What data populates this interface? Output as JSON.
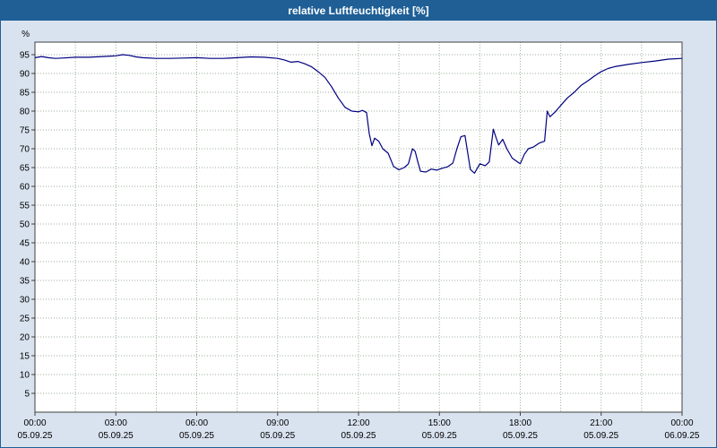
{
  "title_bar": {
    "title": "relative Luftfeuchtigkeit [%]"
  },
  "chart_data": {
    "type": "line",
    "title": "relative Luftfeuchtigkeit [%]",
    "ylabel": "%",
    "xlabel": "",
    "ylim": [
      0,
      98
    ],
    "grid": {
      "horizontal": true,
      "vertical": true,
      "style": "dotted"
    },
    "legend": "none",
    "colors": {
      "line": "#000080",
      "title_bar": "#1f5f96",
      "background": "#d9e3f0",
      "plot_background": "#ffffff",
      "grid_line": "#9bae9b",
      "axis": "#404040"
    },
    "yticks": [
      95,
      90,
      85,
      80,
      75,
      70,
      65,
      60,
      55,
      50,
      45,
      40,
      35,
      30,
      25,
      20,
      15,
      10,
      5
    ],
    "xticks": [
      {
        "hour": 0,
        "time": "00:00",
        "date": "05.09.25"
      },
      {
        "hour": 3,
        "time": "03:00",
        "date": "05.09.25"
      },
      {
        "hour": 6,
        "time": "06:00",
        "date": "05.09.25"
      },
      {
        "hour": 9,
        "time": "09:00",
        "date": "05.09.25"
      },
      {
        "hour": 12,
        "time": "12:00",
        "date": "05.09.25"
      },
      {
        "hour": 15,
        "time": "15:00",
        "date": "05.09.25"
      },
      {
        "hour": 18,
        "time": "18:00",
        "date": "05.09.25"
      },
      {
        "hour": 21,
        "time": "21:00",
        "date": "05.09.25"
      },
      {
        "hour": 24,
        "time": "00:00",
        "date": "06.09.25"
      }
    ],
    "series": [
      {
        "name": "relative Luftfeuchtigkeit [%]",
        "points": [
          [
            0,
            94.2
          ],
          [
            0.25,
            94.5
          ],
          [
            0.5,
            94.2
          ],
          [
            0.75,
            94.0
          ],
          [
            1,
            94.1
          ],
          [
            1.5,
            94.3
          ],
          [
            2,
            94.3
          ],
          [
            2.5,
            94.5
          ],
          [
            3,
            94.7
          ],
          [
            3.25,
            95.0
          ],
          [
            3.5,
            94.8
          ],
          [
            3.75,
            94.4
          ],
          [
            4,
            94.2
          ],
          [
            4.5,
            94.0
          ],
          [
            5,
            94.0
          ],
          [
            5.5,
            94.1
          ],
          [
            6,
            94.2
          ],
          [
            6.5,
            94.0
          ],
          [
            7,
            94.0
          ],
          [
            7.5,
            94.2
          ],
          [
            8,
            94.4
          ],
          [
            8.5,
            94.3
          ],
          [
            9,
            94.0
          ],
          [
            9.25,
            93.6
          ],
          [
            9.5,
            93.0
          ],
          [
            9.75,
            93.2
          ],
          [
            10,
            92.6
          ],
          [
            10.25,
            91.8
          ],
          [
            10.5,
            90.5
          ],
          [
            10.75,
            89.0
          ],
          [
            11,
            86.5
          ],
          [
            11.25,
            83.5
          ],
          [
            11.5,
            81.0
          ],
          [
            11.75,
            80.0
          ],
          [
            12,
            79.8
          ],
          [
            12.15,
            80.2
          ],
          [
            12.3,
            79.6
          ],
          [
            12.4,
            74.0
          ],
          [
            12.5,
            70.8
          ],
          [
            12.6,
            72.8
          ],
          [
            12.75,
            72.0
          ],
          [
            12.9,
            70.0
          ],
          [
            13.1,
            68.8
          ],
          [
            13.3,
            65.3
          ],
          [
            13.5,
            64.4
          ],
          [
            13.7,
            65.0
          ],
          [
            13.85,
            66.0
          ],
          [
            14,
            70.0
          ],
          [
            14.1,
            69.3
          ],
          [
            14.2,
            66.5
          ],
          [
            14.3,
            64.0
          ],
          [
            14.5,
            63.8
          ],
          [
            14.7,
            64.6
          ],
          [
            14.9,
            64.3
          ],
          [
            15.1,
            64.8
          ],
          [
            15.3,
            65.2
          ],
          [
            15.5,
            66.2
          ],
          [
            15.65,
            70.0
          ],
          [
            15.8,
            73.2
          ],
          [
            15.95,
            73.5
          ],
          [
            16.05,
            69.0
          ],
          [
            16.15,
            64.5
          ],
          [
            16.3,
            63.5
          ],
          [
            16.5,
            66.0
          ],
          [
            16.7,
            65.5
          ],
          [
            16.85,
            66.5
          ],
          [
            17,
            75.2
          ],
          [
            17.1,
            73.0
          ],
          [
            17.2,
            71.0
          ],
          [
            17.35,
            72.5
          ],
          [
            17.5,
            70.0
          ],
          [
            17.7,
            67.5
          ],
          [
            17.9,
            66.5
          ],
          [
            18,
            66.0
          ],
          [
            18.15,
            68.5
          ],
          [
            18.3,
            70.0
          ],
          [
            18.5,
            70.5
          ],
          [
            18.7,
            71.5
          ],
          [
            18.9,
            72.0
          ],
          [
            19,
            80.0
          ],
          [
            19.1,
            78.5
          ],
          [
            19.3,
            79.8
          ],
          [
            19.5,
            81.5
          ],
          [
            19.75,
            83.5
          ],
          [
            20,
            85.0
          ],
          [
            20.25,
            86.8
          ],
          [
            20.5,
            88.0
          ],
          [
            20.75,
            89.3
          ],
          [
            21,
            90.5
          ],
          [
            21.25,
            91.3
          ],
          [
            21.5,
            91.8
          ],
          [
            22,
            92.4
          ],
          [
            22.5,
            92.9
          ],
          [
            23,
            93.3
          ],
          [
            23.5,
            93.8
          ],
          [
            24,
            94.0
          ]
        ]
      }
    ]
  }
}
